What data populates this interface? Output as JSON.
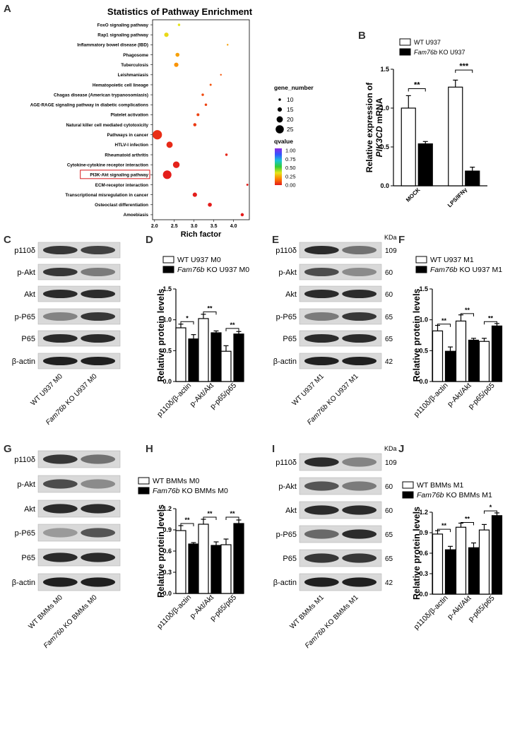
{
  "chart_data": [
    {
      "id": "A",
      "type": "scatter",
      "panel": "A",
      "title": "Statistics of Pathway Enrichment",
      "xlabel": "Rich factor",
      "xticks": [
        "2.0",
        "2.5",
        "3.0",
        "3.5",
        "4.0"
      ],
      "xlim": [
        1.95,
        4.4
      ],
      "highlighted": "PI3K-Akt signaling pathway",
      "size_legend": {
        "title": "gene_number",
        "values": [
          10,
          15,
          20,
          25
        ],
        "labels": [
          "10",
          "15",
          "20",
          "25"
        ]
      },
      "color_legend": {
        "title": "qvalue",
        "ticks": [
          "1.00",
          "0.75",
          "0.50",
          "0.25",
          "0.00"
        ],
        "colors": [
          "#e31a1c",
          "#ff7f00",
          "#e6e619",
          "#33cc33",
          "#19c4d6",
          "#3355ff",
          "#8a2be2"
        ]
      },
      "points": [
        {
          "pathway": "FoxO signaling pathway",
          "rich_factor": 2.62,
          "gene_number": 10,
          "qvalue": 0.4
        },
        {
          "pathway": "Rap1 signaling pathway",
          "rich_factor": 2.3,
          "gene_number": 15,
          "qvalue": 0.38
        },
        {
          "pathway": "Inflammatory bowel disease (IBD)",
          "rich_factor": 3.85,
          "gene_number": 8,
          "qvalue": 0.3
        },
        {
          "pathway": "Phagosome",
          "rich_factor": 2.58,
          "gene_number": 14,
          "qvalue": 0.3
        },
        {
          "pathway": "Tuberculosis",
          "rich_factor": 2.55,
          "gene_number": 15,
          "qvalue": 0.28
        },
        {
          "pathway": "Leishmaniasis",
          "rich_factor": 3.68,
          "gene_number": 8,
          "qvalue": 0.15
        },
        {
          "pathway": "Hematopoietic cell lineage",
          "rich_factor": 3.42,
          "gene_number": 9,
          "qvalue": 0.14
        },
        {
          "pathway": "Chagas disease (American trypanosomiasis)",
          "rich_factor": 3.22,
          "gene_number": 10,
          "qvalue": 0.12
        },
        {
          "pathway": "AGE-RAGE signaling pathway in diabetic complications",
          "rich_factor": 3.3,
          "gene_number": 10,
          "qvalue": 0.1
        },
        {
          "pathway": "Platelet activation",
          "rich_factor": 3.1,
          "gene_number": 11,
          "qvalue": 0.1
        },
        {
          "pathway": "Natural killer cell mediated cytotoxicity",
          "rich_factor": 3.02,
          "gene_number": 12,
          "qvalue": 0.08
        },
        {
          "pathway": "Pathways in cancer",
          "rich_factor": 2.07,
          "gene_number": 28,
          "qvalue": 0.05
        },
        {
          "pathway": "HTLV-I infection",
          "rich_factor": 2.38,
          "gene_number": 20,
          "qvalue": 0.04
        },
        {
          "pathway": "Rheumatoid arthritis",
          "rich_factor": 3.82,
          "gene_number": 10,
          "qvalue": 0.03
        },
        {
          "pathway": "Cytokine-cytokine receptor interaction",
          "rich_factor": 2.55,
          "gene_number": 21,
          "qvalue": 0.02
        },
        {
          "pathway": "PI3K-Akt signaling pathway",
          "rich_factor": 2.32,
          "gene_number": 26,
          "qvalue": 0.01
        },
        {
          "pathway": "ECM-receptor interaction",
          "rich_factor": 4.35,
          "gene_number": 9,
          "qvalue": 0.01
        },
        {
          "pathway": "Transcriptional misregulation in cancer",
          "rich_factor": 3.02,
          "gene_number": 15,
          "qvalue": 0.01
        },
        {
          "pathway": "Osteoclast differentiation",
          "rich_factor": 3.4,
          "gene_number": 14,
          "qvalue": 0.005
        },
        {
          "pathway": "Amoebiasis",
          "rich_factor": 4.22,
          "gene_number": 12,
          "qvalue": 0.005
        }
      ]
    },
    {
      "id": "B",
      "type": "bar",
      "panel": "B",
      "ylabel": [
        "Relative expression of",
        "PIK3CD",
        " mRNA"
      ],
      "ylim": [
        0,
        1.5
      ],
      "yticks": [
        "0.0",
        "0.5",
        "1.0",
        "1.5"
      ],
      "categories": [
        "MOCK",
        "LPS/IFNγ"
      ],
      "series": [
        {
          "name": "WT U937",
          "fill": "#ffffff",
          "values": [
            1.0,
            1.27
          ],
          "errors": [
            0.16,
            0.09
          ]
        },
        {
          "name": "Fam76b KO U937",
          "fill": "#000000",
          "values": [
            0.54,
            0.19
          ],
          "errors": [
            0.03,
            0.05
          ]
        }
      ],
      "legend": [
        {
          "text": "WT U937",
          "italic_prefix": ""
        },
        {
          "text": " KO U937",
          "italic_prefix": "Fam76b"
        }
      ],
      "significance": [
        {
          "group": 0,
          "label": "**",
          "height": 1.25
        },
        {
          "group": 1,
          "label": "***",
          "height": 1.49
        }
      ]
    },
    {
      "id": "D",
      "type": "bar",
      "panel": "D",
      "ylabel": [
        "Relative protein levels"
      ],
      "ylim": [
        0,
        1.5
      ],
      "yticks": [
        "0.0",
        "0.5",
        "1.0",
        "1.5"
      ],
      "categories": [
        "p110δ/β-actin",
        "p-Akt/Akt",
        "p-p65/p65"
      ],
      "series": [
        {
          "name": "WT U937 M0",
          "fill": "#ffffff",
          "values": [
            0.87,
            1.02,
            0.49
          ],
          "errors": [
            0.06,
            0.07,
            0.09
          ]
        },
        {
          "name": "Fam76b KO U937 M0",
          "fill": "#000000",
          "values": [
            0.69,
            0.79,
            0.77
          ],
          "errors": [
            0.07,
            0.03,
            0.04
          ]
        }
      ],
      "legend": [
        {
          "text": "WT U937 M0",
          "italic_prefix": ""
        },
        {
          "text": " KO U937 M0",
          "italic_prefix": "Fam76b"
        }
      ],
      "significance": [
        {
          "group": 0,
          "label": "*",
          "height": 0.97
        },
        {
          "group": 1,
          "label": "**",
          "height": 1.13
        },
        {
          "group": 2,
          "label": "**",
          "height": 0.86
        }
      ]
    },
    {
      "id": "F",
      "type": "bar",
      "panel": "F",
      "ylabel": [
        "Relative protein levels"
      ],
      "ylim": [
        0,
        1.5
      ],
      "yticks": [
        "0.0",
        "0.5",
        "1.0",
        "1.5"
      ],
      "categories": [
        "p110δ/β-actin",
        "p-Akt/Akt",
        "p-p65/p65"
      ],
      "series": [
        {
          "name": "WT U937 M1",
          "fill": "#ffffff",
          "values": [
            0.82,
            0.98,
            0.65
          ],
          "errors": [
            0.09,
            0.1,
            0.05
          ]
        },
        {
          "name": "Fam76b KO U937 M1",
          "fill": "#000000",
          "values": [
            0.49,
            0.67,
            0.9
          ],
          "errors": [
            0.07,
            0.03,
            0.04
          ]
        }
      ],
      "legend": [
        {
          "text": "WT U937 M1",
          "italic_prefix": ""
        },
        {
          "text": " KO U937 M1",
          "italic_prefix": "Fam76b"
        }
      ],
      "significance": [
        {
          "group": 0,
          "label": "**",
          "height": 0.93
        },
        {
          "group": 1,
          "label": "**",
          "height": 1.1
        },
        {
          "group": 2,
          "label": "**",
          "height": 0.97
        }
      ]
    },
    {
      "id": "H",
      "type": "bar",
      "panel": "H",
      "ylabel": [
        "Relative protein levels"
      ],
      "ylim": [
        0,
        1.2
      ],
      "yticks": [
        "0.0",
        "0.3",
        "0.6",
        "0.9",
        "1.2"
      ],
      "categories": [
        "p110δ/β-actin",
        "p-Akt/Akt",
        "p-p65/p65"
      ],
      "series": [
        {
          "name": "WT BMMs M0",
          "fill": "#ffffff",
          "values": [
            0.89,
            0.98,
            0.69
          ],
          "errors": [
            0.07,
            0.07,
            0.08
          ]
        },
        {
          "name": "Fam76b KO BMMs M0",
          "fill": "#000000",
          "values": [
            0.7,
            0.68,
            0.99
          ],
          "errors": [
            0.02,
            0.05,
            0.05
          ]
        }
      ],
      "legend": [
        {
          "text": "WT BMMs M0",
          "italic_prefix": ""
        },
        {
          "text": " KO BMMs M0",
          "italic_prefix": "Fam76b"
        }
      ],
      "significance": [
        {
          "group": 0,
          "label": "**",
          "height": 0.99
        },
        {
          "group": 1,
          "label": "**",
          "height": 1.08
        },
        {
          "group": 2,
          "label": "**",
          "height": 1.08
        }
      ]
    },
    {
      "id": "J",
      "type": "bar",
      "panel": "J",
      "ylabel": [
        "Relative protein levels"
      ],
      "ylim": [
        0,
        1.2
      ],
      "yticks": [
        "0.0",
        "0.3",
        "0.6",
        "0.9",
        "1.2"
      ],
      "categories": [
        "p110δ/β-actin",
        "p-Akt/Akt",
        "p-p65/p65"
      ],
      "series": [
        {
          "name": "WT BMMs M1",
          "fill": "#ffffff",
          "values": [
            0.88,
            0.98,
            0.94
          ],
          "errors": [
            0.05,
            0.06,
            0.08
          ]
        },
        {
          "name": "Fam76b KO BMMs M1",
          "fill": "#000000",
          "values": [
            0.65,
            0.68,
            1.15
          ],
          "errors": [
            0.05,
            0.07,
            0.04
          ]
        }
      ],
      "legend": [
        {
          "text": "WT BMMs M1",
          "italic_prefix": ""
        },
        {
          "text": " KO BMMs M1",
          "italic_prefix": "Fam76b"
        }
      ],
      "significance": [
        {
          "group": 0,
          "label": "**",
          "height": 0.95
        },
        {
          "group": 1,
          "label": "**",
          "height": 1.05
        },
        {
          "group": 2,
          "label": "*",
          "height": 1.22
        }
      ]
    }
  ],
  "blots": [
    {
      "panel": "C",
      "rows": [
        "p110δ",
        "p-Akt",
        "Akt",
        "p-P65",
        "P65",
        "β-actin"
      ],
      "intensity": [
        [
          0.85,
          0.8
        ],
        [
          0.85,
          0.5
        ],
        [
          0.9,
          0.9
        ],
        [
          0.45,
          0.85
        ],
        [
          0.9,
          0.9
        ],
        [
          0.95,
          0.95
        ]
      ],
      "kda_title": "",
      "kda": [],
      "lanes": [
        {
          "italic": "",
          "text": "WT U937 M0"
        },
        {
          "italic": "Fam76b",
          "text": " KO U937 M0"
        }
      ]
    },
    {
      "panel": "E",
      "rows": [
        "p110δ",
        "p-Akt",
        "Akt",
        "p-P65",
        "P65",
        "β-actin"
      ],
      "intensity": [
        [
          0.9,
          0.55
        ],
        [
          0.75,
          0.4
        ],
        [
          0.9,
          0.9
        ],
        [
          0.5,
          0.85
        ],
        [
          0.9,
          0.9
        ],
        [
          0.95,
          0.95
        ]
      ],
      "kda_title": "KDa",
      "kda": [
        "109",
        "60",
        "60",
        "65",
        "65",
        "42"
      ],
      "lanes": [
        {
          "italic": "",
          "text": "WT U937 M1"
        },
        {
          "italic": "Fam76b",
          "text": " KO U937 M1"
        }
      ]
    },
    {
      "panel": "G",
      "rows": [
        "p110δ",
        "p-Akt",
        "Akt",
        "p-P65",
        "P65",
        "β-actin"
      ],
      "intensity": [
        [
          0.85,
          0.55
        ],
        [
          0.75,
          0.4
        ],
        [
          0.9,
          0.9
        ],
        [
          0.3,
          0.7
        ],
        [
          0.9,
          0.9
        ],
        [
          0.95,
          0.95
        ]
      ],
      "kda_title": "",
      "kda": [],
      "lanes": [
        {
          "italic": "",
          "text": "WT BMMs M0"
        },
        {
          "italic": "Fam76b",
          "text": " KO BMMs M0"
        }
      ]
    },
    {
      "panel": "I",
      "rows": [
        "p110δ",
        "p-Akt",
        "Akt",
        "p-P65",
        "P65",
        "β-actin"
      ],
      "intensity": [
        [
          0.9,
          0.45
        ],
        [
          0.7,
          0.5
        ],
        [
          0.9,
          0.9
        ],
        [
          0.6,
          0.9
        ],
        [
          0.85,
          0.85
        ],
        [
          0.95,
          0.95
        ]
      ],
      "kda_title": "KDa",
      "kda": [
        "109",
        "60",
        "60",
        "65",
        "65",
        "42"
      ],
      "lanes": [
        {
          "italic": "",
          "text": "WT BMMs M1"
        },
        {
          "italic": "Fam76b",
          "text": " KO BMMs M1"
        }
      ]
    }
  ],
  "panel_letters": [
    "A",
    "B",
    "C",
    "D",
    "E",
    "F",
    "G",
    "H",
    "I",
    "J"
  ]
}
